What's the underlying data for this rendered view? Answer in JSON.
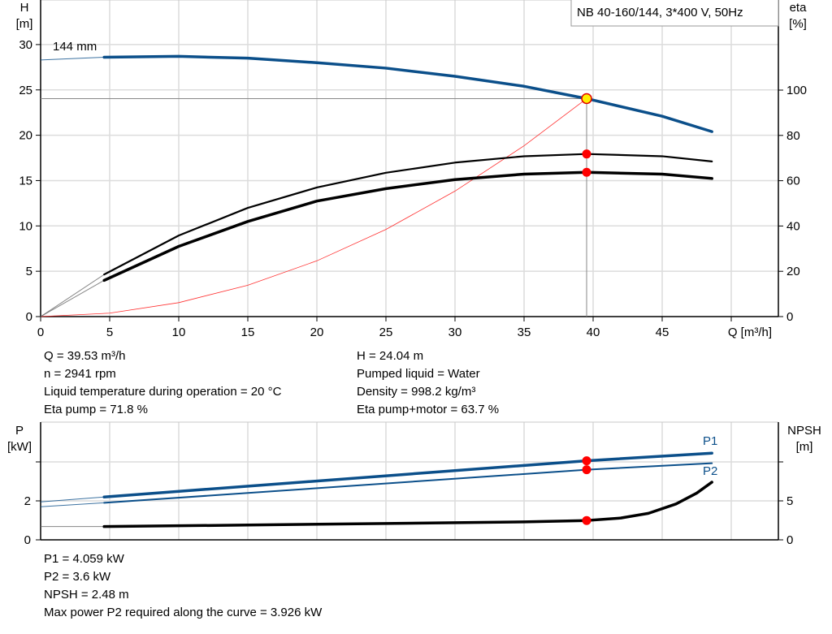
{
  "chart_data": [
    {
      "type": "line",
      "title": "NB 40-160/144, 3*400 V, 50Hz",
      "xlabel": "Q [m³/h]",
      "ylabel_left": [
        "H",
        "[m]"
      ],
      "ylabel_right": [
        "eta",
        "[%]"
      ],
      "xlim": [
        0,
        53
      ],
      "ylim_left": [
        0,
        35
      ],
      "ylim_right": [
        0,
        125
      ],
      "x_ticks": [
        "0",
        "5",
        "10",
        "15",
        "20",
        "25",
        "30",
        "35",
        "40",
        "45"
      ],
      "y_ticks_left": [
        "0",
        "5",
        "10",
        "15",
        "20",
        "25",
        "30"
      ],
      "y_ticks_right": [
        "0",
        "20",
        "40",
        "60",
        "80",
        "100"
      ],
      "grid": true,
      "impeller_label": "144 mm",
      "series": [
        {
          "key": "H",
          "axis": "left",
          "color": "#0b4f8a",
          "x": [
            0,
            4.6,
            10,
            15,
            20,
            25,
            30,
            35,
            39.53,
            45,
            48.6
          ],
          "y": [
            28.3,
            28.6,
            28.7,
            28.5,
            28.0,
            27.4,
            26.5,
            25.4,
            24.04,
            22.1,
            20.4
          ]
        },
        {
          "key": "eta_pump",
          "axis": "right",
          "color": "#000000",
          "x": [
            0,
            4.6,
            10,
            15,
            20,
            25,
            30,
            35,
            39.53,
            45,
            48.6
          ],
          "y": [
            0,
            18.6,
            35.8,
            48,
            57,
            63.5,
            68,
            70.8,
            71.8,
            70.8,
            68.5
          ]
        },
        {
          "key": "eta_pump_motor",
          "axis": "right",
          "color": "#000000",
          "x": [
            0,
            4.6,
            10,
            15,
            20,
            25,
            30,
            35,
            39.53,
            45,
            48.6
          ],
          "y": [
            0,
            16,
            31,
            42,
            51,
            56.5,
            60.5,
            62.9,
            63.7,
            62.9,
            61
          ]
        },
        {
          "key": "system_curve",
          "axis": "left",
          "color": "#ff3030",
          "x": [
            0,
            5,
            10,
            15,
            20,
            25,
            30,
            35,
            39.53
          ],
          "y": [
            0,
            0.38,
            1.54,
            3.46,
            6.15,
            9.61,
            13.84,
            18.84,
            24.04
          ]
        }
      ],
      "duty_point": {
        "Q": 39.53,
        "H": 24.04,
        "eta_pump": 71.8,
        "eta_pump_motor": 63.7
      }
    },
    {
      "type": "line",
      "ylabel_left": [
        "P",
        "[kW]"
      ],
      "ylabel_right": [
        "NPSH",
        "[m]"
      ],
      "xlim": [
        0,
        53
      ],
      "ylim_left": [
        0,
        6
      ],
      "ylim_right": [
        0,
        15
      ],
      "y_ticks_left": [
        "0",
        "2"
      ],
      "y_ticks_right": [
        "0",
        "5"
      ],
      "grid": true,
      "series": [
        {
          "name": "P1",
          "axis": "left",
          "color": "#0b4f8a",
          "x": [
            0,
            4.6,
            39.53,
            48.6
          ],
          "y": [
            1.95,
            2.2,
            4.059,
            4.45
          ]
        },
        {
          "name": "P2",
          "axis": "left",
          "color": "#0b4f8a",
          "x": [
            0,
            4.6,
            39.53,
            48.6
          ],
          "y": [
            1.7,
            1.9,
            3.6,
            3.93
          ]
        },
        {
          "key": "NPSH",
          "axis": "right",
          "color": "#000000",
          "x": [
            0,
            4.6,
            15,
            25,
            35,
            39.53,
            42,
            44,
            46,
            47.5,
            48.6
          ],
          "y": [
            1.7,
            1.7,
            1.9,
            2.1,
            2.3,
            2.48,
            2.8,
            3.4,
            4.6,
            6,
            7.4
          ]
        }
      ],
      "duty_point": {
        "Q": 39.53,
        "P1": 4.059,
        "P2": 3.6,
        "NPSH": 2.48
      }
    }
  ],
  "info_top_left": [
    "Q = 39.53 m³/h",
    "n = 2941 rpm",
    "Liquid temperature during operation = 20 °C",
    "Eta pump = 71.8 %"
  ],
  "info_top_right": [
    "H = 24.04 m",
    "Pumped liquid = Water",
    "Density = 998.2 kg/m³",
    "Eta pump+motor = 63.7 %"
  ],
  "info_bottom": [
    "P1 = 4.059 kW",
    "P2 = 3.6 kW",
    "NPSH = 2.48 m",
    "Max power P2 required along the curve = 3.926 kW"
  ]
}
